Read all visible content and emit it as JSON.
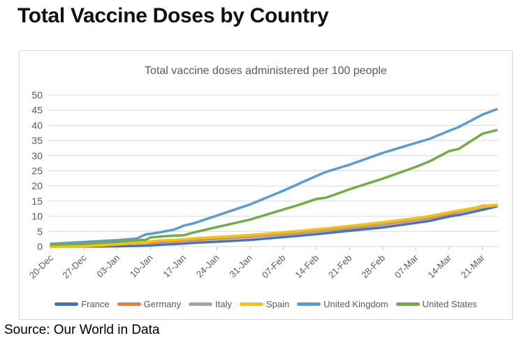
{
  "page": {
    "title": "Total Vaccine Doses by Country",
    "source": "Source: Our World in Data"
  },
  "chart_data": {
    "type": "line",
    "title": "Total vaccine doses administered per 100 people",
    "xlabel": "",
    "ylabel": "",
    "ylim": [
      0,
      50
    ],
    "y_ticks": [
      0,
      5,
      10,
      15,
      20,
      25,
      30,
      35,
      40,
      45,
      50
    ],
    "grid": true,
    "legend_position": "bottom",
    "x_tick_labels": [
      "20-Dec",
      "27-Dec",
      "03-Jan",
      "10-Jan",
      "17-Jan",
      "24-Jan",
      "31-Jan",
      "07-Feb",
      "14-Feb",
      "21-Feb",
      "28-Feb",
      "07-Mar",
      "14-Mar",
      "21-Mar"
    ],
    "x_tick_days": [
      0,
      7,
      14,
      21,
      28,
      35,
      42,
      49,
      56,
      63,
      70,
      77,
      84,
      91
    ],
    "x_unit": "days since 20-Dec-2020",
    "x_day_span": [
      0,
      94
    ],
    "axis_color": "#595959",
    "gridline_color": "#d9d9d9",
    "sample_days": [
      0,
      7,
      14,
      18,
      20,
      21,
      23,
      26,
      28,
      30,
      35,
      42,
      49,
      52,
      56,
      58,
      63,
      70,
      77,
      80,
      84,
      86,
      91,
      94
    ],
    "series": [
      {
        "name": "France",
        "color": "#4472C4",
        "values": [
          0,
          0,
          0.1,
          0.2,
          0.3,
          0.4,
          0.6,
          0.8,
          1.0,
          1.2,
          1.6,
          2.2,
          3.1,
          3.5,
          4.1,
          4.4,
          5.2,
          6.3,
          7.8,
          8.5,
          9.9,
          10.4,
          12.1,
          13.2
        ]
      },
      {
        "name": "Germany",
        "color": "#ED7D31",
        "values": [
          0,
          0.2,
          0.8,
          1.1,
          1.2,
          1.3,
          1.5,
          1.7,
          1.9,
          2.1,
          2.5,
          3.2,
          4.0,
          4.4,
          5.0,
          5.3,
          6.0,
          7.2,
          8.7,
          9.4,
          10.7,
          11.3,
          13.4,
          13.7
        ]
      },
      {
        "name": "Italy",
        "color": "#A5A5A5",
        "values": [
          0,
          0.1,
          0.9,
          1.4,
          1.5,
          1.6,
          1.8,
          2.0,
          2.2,
          2.4,
          2.8,
          3.4,
          4.2,
          4.6,
          5.2,
          5.5,
          6.2,
          7.4,
          8.9,
          9.6,
          10.9,
          11.4,
          13.0,
          13.5
        ]
      },
      {
        "name": "Spain",
        "color": "#FFC000",
        "values": [
          0,
          0.1,
          0.7,
          1.2,
          1.4,
          1.7,
          2.0,
          2.2,
          2.4,
          2.7,
          3.1,
          3.8,
          4.7,
          5.1,
          5.7,
          6.0,
          6.8,
          8.0,
          9.4,
          10.1,
          11.3,
          11.9,
          13.2,
          13.8
        ]
      },
      {
        "name": "United Kingdom",
        "color": "#5B9BD5",
        "values": [
          0.9,
          1.5,
          2.1,
          2.6,
          4.0,
          4.2,
          4.7,
          5.6,
          6.9,
          7.6,
          10.2,
          13.9,
          18.4,
          20.5,
          23.3,
          24.6,
          27.0,
          30.9,
          34.2,
          35.6,
          38.2,
          39.4,
          43.5,
          45.3
        ]
      },
      {
        "name": "United States",
        "color": "#70AD47",
        "values": [
          0.6,
          1.0,
          1.6,
          2.1,
          2.2,
          3.0,
          3.3,
          3.6,
          3.7,
          4.6,
          6.4,
          8.9,
          12.2,
          13.6,
          15.7,
          16.1,
          18.9,
          22.4,
          26.3,
          28.2,
          31.5,
          32.2,
          37.2,
          38.4
        ]
      }
    ]
  }
}
